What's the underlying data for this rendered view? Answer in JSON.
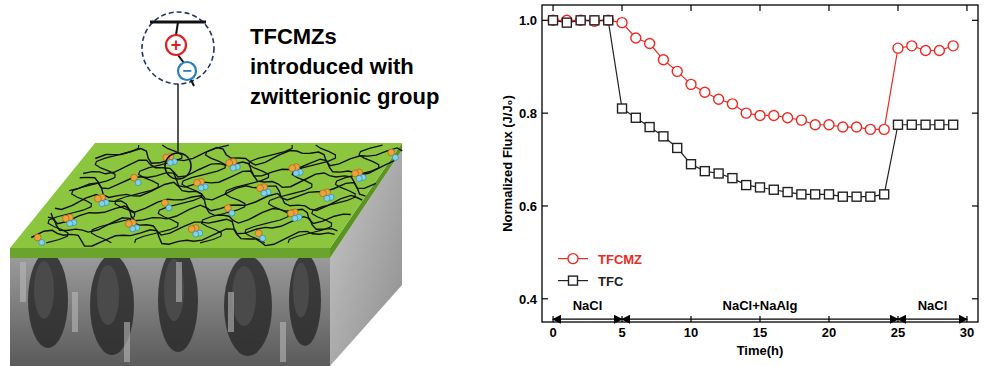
{
  "diagram": {
    "label": [
      "TFCMZs",
      "introduced with",
      "zwitterionic group"
    ],
    "charges": [
      "+",
      "−"
    ]
  },
  "chart_data": {
    "type": "line",
    "x_label": "Time(h)",
    "y_label": "Normalized Flux (J/J₀)",
    "x": [
      0,
      1,
      2,
      3,
      4,
      5,
      6,
      7,
      8,
      9,
      10,
      11,
      12,
      13,
      14,
      15,
      16,
      17,
      18,
      19,
      20,
      21,
      22,
      23,
      24,
      25,
      26,
      27,
      28,
      29
    ],
    "series": [
      {
        "name": "TFCMZ",
        "color": "#ee2a24",
        "marker": "circle",
        "line_style": "solid",
        "values": [
          1.0,
          1.0,
          1.0,
          0.998,
          1.0,
          0.995,
          0.962,
          0.95,
          0.915,
          0.89,
          0.862,
          0.845,
          0.83,
          0.82,
          0.8,
          0.795,
          0.795,
          0.79,
          0.785,
          0.775,
          0.775,
          0.77,
          0.77,
          0.765,
          0.765,
          0.94,
          0.945,
          0.935,
          0.935,
          0.945
        ]
      },
      {
        "name": "TFC",
        "color": "#222222",
        "marker": "square",
        "line_style": "solid",
        "values": [
          1.0,
          0.995,
          1.0,
          1.0,
          1.0,
          0.81,
          0.79,
          0.77,
          0.75,
          0.725,
          0.69,
          0.675,
          0.67,
          0.66,
          0.645,
          0.64,
          0.635,
          0.63,
          0.625,
          0.625,
          0.625,
          0.62,
          0.62,
          0.62,
          0.625,
          0.775,
          0.775,
          0.775,
          0.775,
          0.775
        ]
      }
    ],
    "xlim": [
      -0.8,
      30.8
    ],
    "xticks": [
      0,
      5,
      10,
      15,
      20,
      25,
      30
    ],
    "ylim": [
      0.35,
      1.033
    ],
    "yticks": [
      {
        "value": 0.4,
        "label": "0.4"
      },
      {
        "value": 0.6,
        "label": "0.6"
      },
      {
        "value": 0.8,
        "label": "0.8"
      },
      {
        "value": 1,
        "label": "1.0"
      }
    ],
    "annotations": [
      {
        "text": "NaCl",
        "x": [
          0,
          5
        ],
        "y": 0.356
      },
      {
        "text": "NaCl+NaAlg",
        "x": [
          5,
          25
        ],
        "y": 0.356
      },
      {
        "text": "NaCl",
        "x": [
          25,
          30
        ],
        "y": 0.356
      }
    ],
    "legend": "left",
    "grid": false
  }
}
